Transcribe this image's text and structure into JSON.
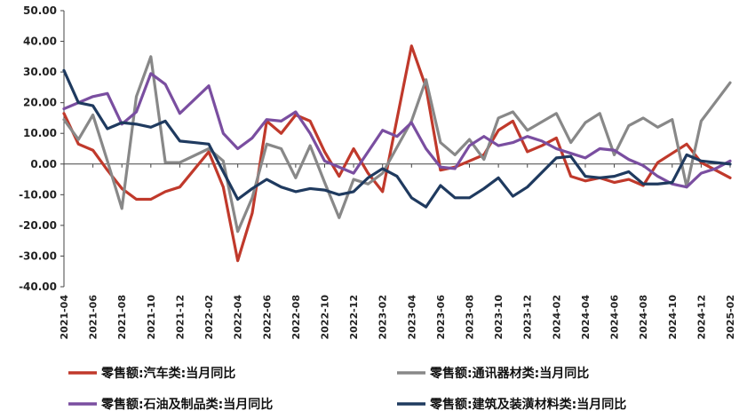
{
  "chart_data": {
    "type": "line",
    "title": "",
    "xlabel": "",
    "ylabel": "",
    "ylim": [
      -40,
      50
    ],
    "y_ticks": [
      -40,
      -30,
      -20,
      -10,
      0,
      10,
      20,
      30,
      40,
      50
    ],
    "y_tick_labels": [
      "-40.00",
      "-30.00",
      "-20.00",
      "-10.00",
      "0.00",
      "10.00",
      "20.00",
      "30.00",
      "40.00",
      "50.00"
    ],
    "x": [
      "2021-04",
      "2021-05",
      "2021-06",
      "2021-07",
      "2021-08",
      "2021-09",
      "2021-10",
      "2021-11",
      "2021-12",
      "2022-01",
      "2022-02",
      "2022-03",
      "2022-04",
      "2022-05",
      "2022-06",
      "2022-07",
      "2022-08",
      "2022-09",
      "2022-10",
      "2022-11",
      "2022-12",
      "2023-01",
      "2023-02",
      "2023-03",
      "2023-04",
      "2023-05",
      "2023-06",
      "2023-07",
      "2023-08",
      "2023-09",
      "2023-10",
      "2023-11",
      "2023-12",
      "2024-01",
      "2024-02",
      "2024-03",
      "2024-04",
      "2024-05",
      "2024-06",
      "2024-07",
      "2024-08",
      "2024-09",
      "2024-10",
      "2024-11",
      "2024-12",
      "2025-01",
      "2025-02"
    ],
    "x_tick_labels": [
      "2021-04",
      "2021-06",
      "2021-08",
      "2021-10",
      "2021-12",
      "2022-02",
      "2022-04",
      "2022-06",
      "2022-08",
      "2022-10",
      "2022-12",
      "2023-02",
      "2023-04",
      "2023-06",
      "2023-08",
      "2023-10",
      "2023-12",
      "2024-02",
      "2024-04",
      "2024-06",
      "2024-08",
      "2024-10",
      "2024-12",
      "2025-02"
    ],
    "grid": false,
    "legend_position": "bottom",
    "series": [
      {
        "name": "零售额:汽车类:当月同比",
        "color": "#c0392b",
        "values": [
          16.5,
          6.5,
          4.5,
          -2,
          -8,
          -11.5,
          -11.5,
          -9,
          -7.5,
          null,
          4,
          -7.5,
          -31.5,
          -16,
          14,
          10,
          16,
          14,
          4,
          -4,
          5,
          -3,
          -9,
          null,
          38.5,
          25,
          -2,
          -1,
          1,
          3,
          11,
          14,
          4,
          6,
          8.5,
          -4,
          -5.5,
          -4.5,
          -6,
          -5,
          -7,
          0.5,
          3.5,
          6.5,
          0.5,
          -2,
          -4.5
        ]
      },
      {
        "name": "零售额:通讯器材类:当月同比",
        "color": "#888888",
        "values": [
          14.5,
          8,
          16,
          1,
          -14.5,
          22,
          35,
          0.5,
          0.5,
          null,
          5,
          1,
          -22,
          -11,
          6.5,
          5,
          -4.5,
          6,
          -6,
          -17.5,
          -5,
          -6.5,
          -3,
          null,
          14,
          27.5,
          7,
          3,
          8,
          1.5,
          15,
          17,
          11,
          null,
          16.5,
          7,
          13.5,
          16.5,
          3,
          12.5,
          15,
          12,
          14.5,
          -7.5,
          14,
          null,
          26.5
        ]
      },
      {
        "name": "零售额:石油及制品类:当月同比",
        "color": "#7a4ea0",
        "values": [
          18,
          null,
          22,
          23,
          13,
          17,
          29.5,
          26,
          16.5,
          null,
          25.5,
          10,
          5,
          8.5,
          14.5,
          14,
          17,
          10,
          1,
          -1,
          -3,
          null,
          11,
          9,
          13.5,
          5,
          -1,
          -1.5,
          6,
          9,
          6,
          7,
          9,
          7.5,
          5,
          3.5,
          2,
          5,
          4.5,
          1.5,
          -0.5,
          -4,
          -6.5,
          -7.5,
          -3,
          -1.5,
          1
        ]
      },
      {
        "name": "零售额:建筑及装潢材料类:当月同比",
        "color": "#1f3a5f",
        "values": [
          30.5,
          20,
          19,
          11.5,
          13.5,
          13,
          12,
          14,
          7.5,
          7,
          6.5,
          null,
          -11.5,
          -8,
          -5,
          -7.5,
          -9,
          -8,
          -8.5,
          -10,
          -9,
          -4.5,
          -1.5,
          -4,
          -11,
          -14,
          -7,
          -11,
          -11,
          -8,
          -4.5,
          -10.5,
          -7.5,
          null,
          2,
          2.5,
          -4,
          -4.5,
          -4,
          -2.5,
          -6.5,
          -6.5,
          -6,
          3,
          1,
          0.5,
          0
        ]
      }
    ]
  }
}
